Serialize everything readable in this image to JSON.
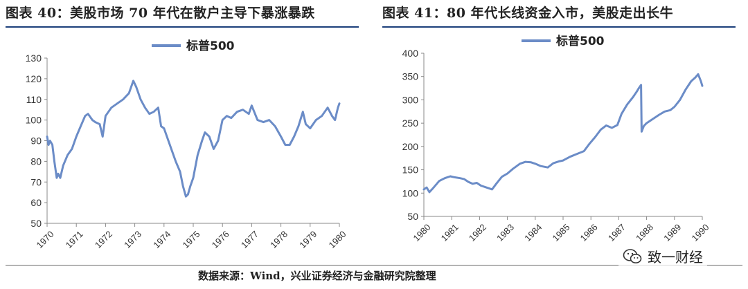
{
  "figures": [
    {
      "title": "图表 40：美股市场 70 年代在散户主导下暴涨暴跌"
    },
    {
      "title": "图表 41：80 年代长线资金入市，美股走出长牛"
    }
  ],
  "source": "数据来源：Wind，兴业证券经济与金融研究院整理",
  "watermark": {
    "text": "致一财经",
    "icon": "wechat-icon"
  },
  "chart_data": [
    {
      "type": "line",
      "legend_position": "top",
      "grid": false,
      "color": "#6b8cc7",
      "ylim": [
        50,
        130
      ],
      "yticks": [
        "50",
        "60",
        "70",
        "80",
        "90",
        "100",
        "110",
        "120",
        "130"
      ],
      "xlim": [
        1970,
        1980
      ],
      "xticks": [
        "1970",
        "1971",
        "1972",
        "1973",
        "1974",
        "1975",
        "1976",
        "1977",
        "1978",
        "1979",
        "1980"
      ],
      "series": [
        {
          "name": "标普500",
          "x": [
            1970.0,
            1970.05,
            1970.1,
            1970.18,
            1970.25,
            1970.33,
            1970.38,
            1970.45,
            1970.55,
            1970.7,
            1970.85,
            1971.0,
            1971.15,
            1971.3,
            1971.4,
            1971.55,
            1971.65,
            1971.8,
            1971.9,
            1972.0,
            1972.2,
            1972.4,
            1972.6,
            1972.8,
            1972.95,
            1973.05,
            1973.2,
            1973.35,
            1973.5,
            1973.65,
            1973.8,
            1973.9,
            1974.0,
            1974.1,
            1974.25,
            1974.4,
            1974.55,
            1974.65,
            1974.75,
            1974.82,
            1974.9,
            1975.0,
            1975.15,
            1975.3,
            1975.4,
            1975.55,
            1975.7,
            1975.85,
            1976.0,
            1976.15,
            1976.3,
            1976.5,
            1976.7,
            1976.9,
            1977.0,
            1977.2,
            1977.4,
            1977.6,
            1977.8,
            1978.0,
            1978.15,
            1978.3,
            1978.45,
            1978.6,
            1978.75,
            1978.85,
            1979.0,
            1979.2,
            1979.4,
            1979.6,
            1979.75,
            1979.85,
            1979.95,
            1980.0
          ],
          "values": [
            92,
            88,
            90,
            88,
            80,
            72,
            74,
            72,
            78,
            83,
            86,
            92,
            97,
            102,
            103,
            100,
            99,
            98,
            92,
            102,
            106,
            108,
            110,
            113,
            119,
            116,
            110,
            106,
            103,
            104,
            106,
            97,
            96,
            92,
            86,
            80,
            75,
            68,
            63,
            64,
            68,
            72,
            83,
            90,
            94,
            92,
            86,
            90,
            100,
            102,
            101,
            104,
            105,
            103,
            107,
            100,
            99,
            100,
            97,
            92,
            88,
            88,
            92,
            97,
            104,
            98,
            96,
            100,
            102,
            106,
            102,
            100,
            106,
            108
          ]
        }
      ]
    },
    {
      "type": "line",
      "legend_position": "top",
      "grid": false,
      "color": "#6b8cc7",
      "ylim": [
        50,
        400
      ],
      "yticks": [
        "50",
        "100",
        "150",
        "200",
        "250",
        "300",
        "350",
        "400"
      ],
      "xlim": [
        1980,
        1990
      ],
      "xticks": [
        "1980",
        "1981",
        "1982",
        "1983",
        "1984",
        "1985",
        "1986",
        "1987",
        "1988",
        "1989",
        "1990"
      ],
      "series": [
        {
          "name": "标普500",
          "x": [
            1980.0,
            1980.1,
            1980.2,
            1980.35,
            1980.55,
            1980.75,
            1980.95,
            1981.1,
            1981.3,
            1981.45,
            1981.6,
            1981.75,
            1981.9,
            1982.05,
            1982.25,
            1982.45,
            1982.6,
            1982.8,
            1983.0,
            1983.2,
            1983.45,
            1983.65,
            1983.85,
            1984.0,
            1984.2,
            1984.45,
            1984.65,
            1984.85,
            1985.0,
            1985.25,
            1985.5,
            1985.75,
            1985.95,
            1986.15,
            1986.35,
            1986.55,
            1986.75,
            1986.95,
            1987.1,
            1987.3,
            1987.5,
            1987.65,
            1987.72,
            1987.8,
            1987.82,
            1987.9,
            1988.0,
            1988.2,
            1988.45,
            1988.65,
            1988.85,
            1989.0,
            1989.2,
            1989.4,
            1989.6,
            1989.75,
            1989.85,
            1989.95,
            1990.0
          ],
          "values": [
            108,
            112,
            102,
            112,
            126,
            132,
            136,
            134,
            132,
            130,
            124,
            120,
            122,
            116,
            112,
            108,
            120,
            135,
            142,
            152,
            163,
            167,
            166,
            163,
            158,
            155,
            164,
            168,
            170,
            178,
            184,
            190,
            206,
            220,
            236,
            245,
            240,
            246,
            270,
            290,
            305,
            318,
            325,
            332,
            232,
            244,
            250,
            258,
            268,
            275,
            278,
            285,
            300,
            322,
            340,
            348,
            355,
            340,
            330
          ]
        }
      ]
    }
  ]
}
